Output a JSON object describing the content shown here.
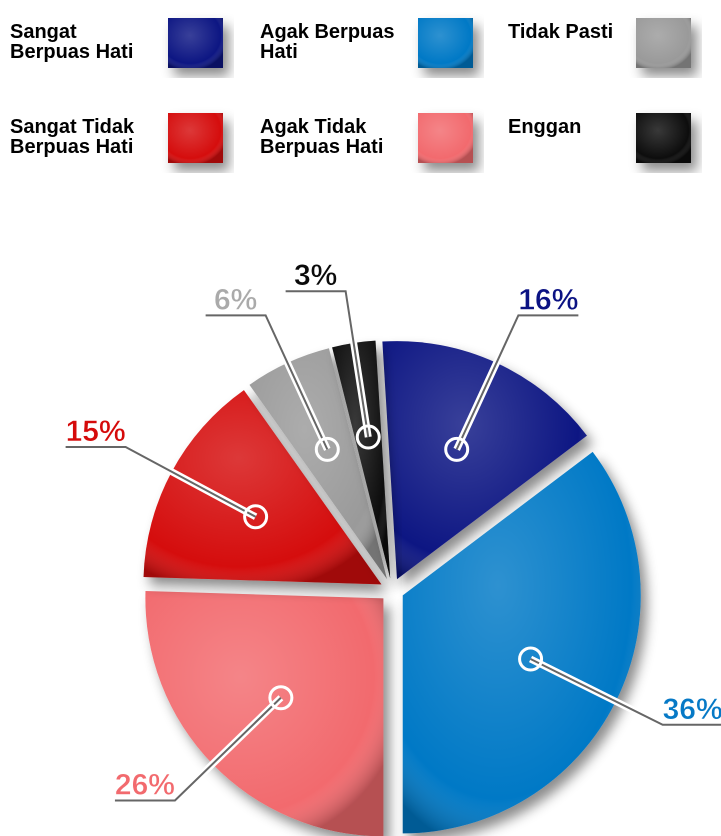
{
  "chart_data": {
    "type": "pie",
    "categories": [
      "Sangat Berpuas Hati",
      "Agak Berpuas Hati",
      "Agak Tidak Berpuas Hati",
      "Sangat Tidak Berpuas Hati",
      "Tidak Pasti",
      "Enggan"
    ],
    "values": [
      16,
      36,
      26,
      15,
      6,
      3
    ],
    "value_labels": [
      "16%",
      "36%",
      "26%",
      "15%",
      "6%",
      "3%"
    ],
    "colors": [
      "#0b1283",
      "#0679c6",
      "#f26a6e",
      "#d50a0a",
      "#9a9a9a",
      "#0a0a0a"
    ],
    "legend": "top"
  }
}
